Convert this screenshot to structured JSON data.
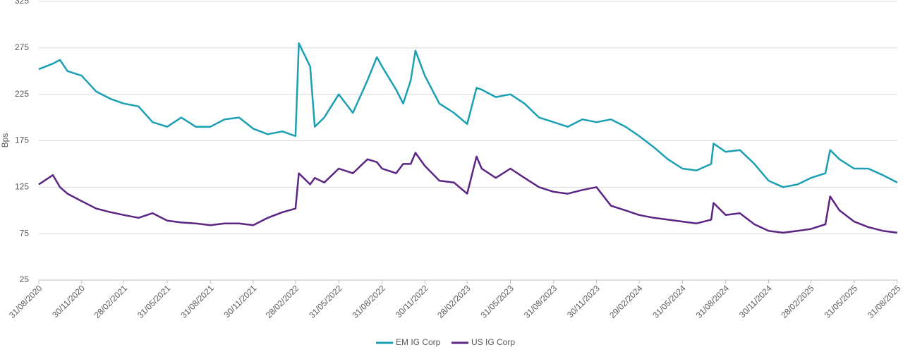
{
  "chart_data": {
    "type": "line",
    "y_label": "Bps",
    "x": [
      "2020-08-31",
      "2020-09-30",
      "2020-10-15",
      "2020-10-31",
      "2020-11-30",
      "2020-12-31",
      "2021-01-31",
      "2021-02-28",
      "2021-03-31",
      "2021-04-30",
      "2021-05-31",
      "2021-06-30",
      "2021-07-31",
      "2021-08-31",
      "2021-09-30",
      "2021-10-31",
      "2021-11-30",
      "2021-12-31",
      "2022-01-31",
      "2022-02-28",
      "2022-03-07",
      "2022-03-31",
      "2022-04-10",
      "2022-04-30",
      "2022-05-31",
      "2022-06-30",
      "2022-07-31",
      "2022-08-20",
      "2022-08-31",
      "2022-09-30",
      "2022-10-15",
      "2022-10-31",
      "2022-11-10",
      "2022-11-30",
      "2022-12-31",
      "2023-01-31",
      "2023-02-28",
      "2023-03-20",
      "2023-03-31",
      "2023-04-30",
      "2023-05-31",
      "2023-06-30",
      "2023-07-31",
      "2023-08-31",
      "2023-09-30",
      "2023-10-31",
      "2023-11-30",
      "2023-12-31",
      "2024-01-31",
      "2024-02-29",
      "2024-03-31",
      "2024-04-30",
      "2024-05-31",
      "2024-06-30",
      "2024-07-31",
      "2024-08-05",
      "2024-08-31",
      "2024-09-30",
      "2024-10-31",
      "2024-11-30",
      "2024-12-31",
      "2025-01-31",
      "2025-02-28",
      "2025-03-31",
      "2025-04-10",
      "2025-04-30",
      "2025-05-31",
      "2025-06-30",
      "2025-07-31",
      "2025-08-31"
    ],
    "series": [
      {
        "name": "EM IG Corp",
        "color": "#1a9fb3",
        "values": [
          252,
          258,
          262,
          250,
          245,
          228,
          220,
          215,
          212,
          195,
          190,
          200,
          190,
          190,
          198,
          200,
          188,
          182,
          185,
          180,
          280,
          255,
          190,
          200,
          225,
          205,
          240,
          265,
          255,
          230,
          215,
          240,
          272,
          245,
          215,
          205,
          193,
          232,
          230,
          222,
          225,
          215,
          200,
          195,
          190,
          198,
          195,
          198,
          190,
          180,
          168,
          155,
          145,
          143,
          150,
          172,
          163,
          165,
          150,
          132,
          125,
          128,
          135,
          140,
          165,
          155,
          145,
          145,
          138,
          130
        ]
      },
      {
        "name": "US IG Corp",
        "color": "#5c2483",
        "values": [
          128,
          138,
          125,
          118,
          110,
          102,
          98,
          95,
          92,
          97,
          89,
          87,
          86,
          84,
          86,
          86,
          84,
          92,
          98,
          102,
          140,
          128,
          135,
          130,
          145,
          140,
          155,
          152,
          145,
          140,
          150,
          150,
          162,
          148,
          132,
          130,
          118,
          158,
          145,
          135,
          145,
          135,
          125,
          120,
          118,
          122,
          125,
          105,
          100,
          95,
          92,
          90,
          88,
          86,
          90,
          108,
          95,
          97,
          85,
          78,
          76,
          78,
          80,
          85,
          115,
          100,
          88,
          82,
          78,
          76
        ]
      }
    ],
    "ylim": [
      25,
      325
    ],
    "yticks": [
      25,
      75,
      125,
      175,
      225,
      275,
      325
    ],
    "xlim": [
      "2020-08-31",
      "2025-08-31"
    ],
    "xticks": [
      {
        "value": "2020-08-31",
        "label": "31/08/2020"
      },
      {
        "value": "2020-11-30",
        "label": "30/11/2020"
      },
      {
        "value": "2021-02-28",
        "label": "28/02/2021"
      },
      {
        "value": "2021-05-31",
        "label": "31/05/2021"
      },
      {
        "value": "2021-08-31",
        "label": "31/08/2021"
      },
      {
        "value": "2021-11-30",
        "label": "30/11/2021"
      },
      {
        "value": "2022-02-28",
        "label": "28/02/2022"
      },
      {
        "value": "2022-05-31",
        "label": "31/05/2022"
      },
      {
        "value": "2022-08-31",
        "label": "31/08/2022"
      },
      {
        "value": "2022-11-30",
        "label": "30/11/2022"
      },
      {
        "value": "2023-02-28",
        "label": "28/02/2023"
      },
      {
        "value": "2023-05-31",
        "label": "31/05/2023"
      },
      {
        "value": "2023-08-31",
        "label": "31/08/2023"
      },
      {
        "value": "2023-11-30",
        "label": "30/11/2023"
      },
      {
        "value": "2024-02-29",
        "label": "29/02/2024"
      },
      {
        "value": "2024-05-31",
        "label": "31/05/2024"
      },
      {
        "value": "2024-08-31",
        "label": "31/08/2024"
      },
      {
        "value": "2024-11-30",
        "label": "30/11/2024"
      },
      {
        "value": "2025-02-28",
        "label": "28/02/2025"
      },
      {
        "value": "2025-05-31",
        "label": "31/05/2025"
      },
      {
        "value": "2025-08-31",
        "label": "31/08/2025"
      }
    ],
    "grid": true,
    "legend": "bottom"
  }
}
